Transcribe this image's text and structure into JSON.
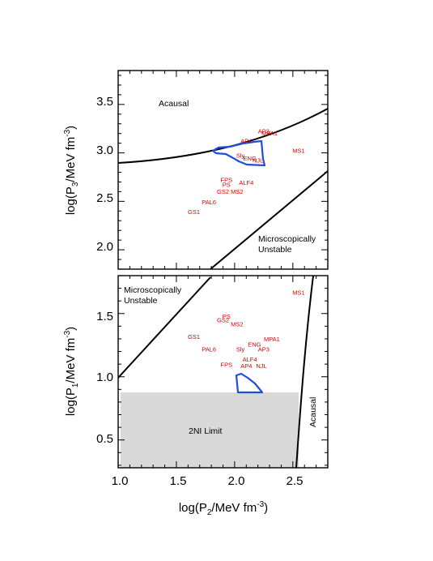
{
  "chart_data": [
    {
      "type": "scatter",
      "panel": "top",
      "xlim": [
        1.0,
        2.8
      ],
      "ylim": [
        1.8,
        3.85
      ],
      "ylabel": "log(P_3/MeV fm^-3)",
      "yticks": [
        "2.0",
        "2.5",
        "3.0",
        "3.5"
      ],
      "regions": [
        {
          "label": "Acausal"
        },
        {
          "label": "Microscopically Unstable"
        }
      ],
      "eos_points": [
        {
          "name": "AP3",
          "x": 2.25,
          "y": 3.2
        },
        {
          "name": "MPA1",
          "x": 2.3,
          "y": 3.18
        },
        {
          "name": "AP4",
          "x": 2.1,
          "y": 3.1
        },
        {
          "name": "MS1",
          "x": 2.55,
          "y": 3.0
        },
        {
          "name": "Sly",
          "x": 2.05,
          "y": 2.95
        },
        {
          "name": "NJL",
          "x": 2.2,
          "y": 2.9
        },
        {
          "name": "ENG",
          "x": 2.13,
          "y": 2.92
        },
        {
          "name": "FPS",
          "x": 1.93,
          "y": 2.7
        },
        {
          "name": "PS",
          "x": 1.93,
          "y": 2.65
        },
        {
          "name": "ALF4",
          "x": 2.1,
          "y": 2.67
        },
        {
          "name": "GS2",
          "x": 1.9,
          "y": 2.58
        },
        {
          "name": "MS2",
          "x": 2.02,
          "y": 2.58
        },
        {
          "name": "PAL6",
          "x": 1.78,
          "y": 2.47
        },
        {
          "name": "GS1",
          "x": 1.65,
          "y": 2.37
        }
      ]
    },
    {
      "type": "scatter",
      "panel": "bottom",
      "xlabel": "log(P_2/MeV fm^-3)",
      "ylabel": "log(P_1/MeV fm^-3)",
      "xlim": [
        1.0,
        2.8
      ],
      "ylim": [
        0.28,
        1.8
      ],
      "xticks": [
        "1.0",
        "1.5",
        "2.0",
        "2.5"
      ],
      "yticks": [
        "0.5",
        "1.0",
        "1.5"
      ],
      "regions": [
        {
          "label": "Microscopically Unstable"
        },
        {
          "label": "Acausal"
        },
        {
          "label": "2NI Limit"
        }
      ],
      "eos_points": [
        {
          "name": "MS1",
          "x": 2.55,
          "y": 1.65
        },
        {
          "name": "PS",
          "x": 1.93,
          "y": 1.46
        },
        {
          "name": "GS2",
          "x": 1.9,
          "y": 1.43
        },
        {
          "name": "MS2",
          "x": 2.02,
          "y": 1.4
        },
        {
          "name": "GS1",
          "x": 1.65,
          "y": 1.3
        },
        {
          "name": "MPA1",
          "x": 2.32,
          "y": 1.28
        },
        {
          "name": "ENG",
          "x": 2.17,
          "y": 1.24
        },
        {
          "name": "PAL6",
          "x": 1.78,
          "y": 1.2
        },
        {
          "name": "Sly",
          "x": 2.05,
          "y": 1.2
        },
        {
          "name": "AP3",
          "x": 2.25,
          "y": 1.2
        },
        {
          "name": "ALF4",
          "x": 2.13,
          "y": 1.12
        },
        {
          "name": "FPS",
          "x": 1.93,
          "y": 1.08
        },
        {
          "name": "AP4",
          "x": 2.1,
          "y": 1.07
        },
        {
          "name": "NJL",
          "x": 2.23,
          "y": 1.07
        }
      ]
    }
  ]
}
